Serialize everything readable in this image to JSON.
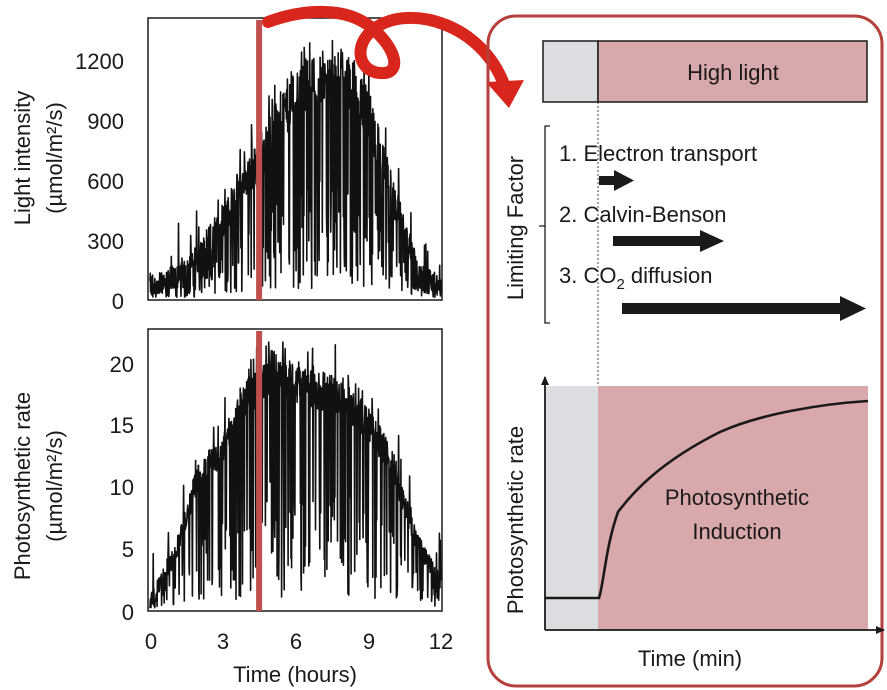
{
  "colors": {
    "red_marker": "#c0504d",
    "high_light_fill": "#d9a8aa",
    "baseline_fill": "#dcdde0",
    "ink": "#1a1a1a",
    "callout_border": "#b5403b",
    "callout_arrow": "#d9261c"
  },
  "light_chart": {
    "ylabel_line1": "Light intensity",
    "ylabel_line2": "(µmol/m²/s)",
    "yticks": [
      "0",
      "300",
      "600",
      "900",
      "1200"
    ],
    "ylim": [
      0,
      1350
    ],
    "xlim": [
      0,
      12
    ],
    "marker_x": 4.5
  },
  "photo_chart": {
    "ylabel_line1": "Photosynthetic rate",
    "ylabel_line2": "(µmol/m²/s)",
    "yticks": [
      "0",
      "5",
      "10",
      "15",
      "20"
    ],
    "ylim": [
      0,
      21
    ],
    "xlim": [
      0,
      12
    ],
    "xticks": [
      "0",
      "3",
      "6",
      "9",
      "12"
    ],
    "xlabel": "Time (hours)",
    "marker_x": 4.5
  },
  "chart_data": [
    {
      "type": "line",
      "series": [
        {
          "x": [
            0,
            1,
            2,
            3,
            4,
            4.5,
            5,
            6,
            7,
            8,
            9,
            10,
            11,
            12
          ],
          "values": [
            70,
            110,
            200,
            380,
            600,
            650,
            800,
            1000,
            1050,
            1100,
            900,
            500,
            150,
            50
          ]
        }
      ],
      "xlabel": "",
      "ylabel": "Light intensity (µmol/m²/s)",
      "xlim": [
        0,
        12
      ],
      "ylim": [
        0,
        1350
      ]
    },
    {
      "type": "line",
      "series": [
        {
          "x": [
            0,
            1,
            2,
            3,
            4,
            4.5,
            5,
            6,
            7,
            8,
            9,
            10,
            11,
            12
          ],
          "values": [
            0.5,
            4,
            10,
            12,
            16,
            16.5,
            18,
            17,
            16.5,
            16,
            14,
            11,
            5,
            2
          ]
        }
      ],
      "xlabel": "Time (hours)",
      "ylabel": "Photosynthetic rate (µmol/m²/s)",
      "xlim": [
        0,
        12
      ],
      "ylim": [
        0,
        21
      ]
    }
  ],
  "induction_panel": {
    "high_light_label": "High light",
    "limiting_factor_label": "Limiting Factor",
    "factors": [
      {
        "prefix": "1. Electron transport",
        "sub": "",
        "suffix": ""
      },
      {
        "prefix": "2. Calvin-Benson",
        "sub": "",
        "suffix": ""
      },
      {
        "prefix": "3. CO",
        "sub": "2",
        "suffix": " diffusion"
      }
    ],
    "induction_label_line1": "Photosynthetic",
    "induction_label_line2": "Induction",
    "ylabel": "Photosynthetic rate",
    "xlabel": "Time (min)"
  }
}
